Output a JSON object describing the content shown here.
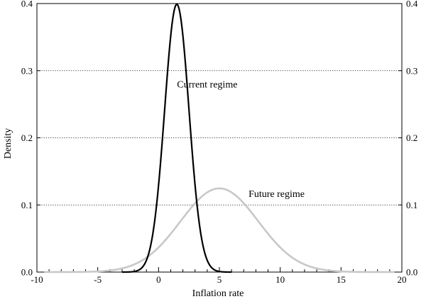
{
  "chart_data": {
    "type": "line",
    "title": "",
    "xlabel": "Inflation rate",
    "ylabel": "Density",
    "xlim": [
      -10,
      20
    ],
    "ylim": [
      0,
      0.4
    ],
    "x_ticks": [
      -10,
      -5,
      0,
      5,
      10,
      15,
      20
    ],
    "x_minor_step": 1,
    "y_ticks": [
      0.0,
      0.1,
      0.2,
      0.3,
      0.4
    ],
    "y_tick_labels": [
      "0.0",
      "0.1",
      "0.2",
      "0.3",
      "0.4"
    ],
    "right_axis_mirror": true,
    "grid": {
      "horizontal": true,
      "style": "dotted"
    },
    "legend": "none",
    "series": [
      {
        "name": "Current regime",
        "distribution": "normal",
        "mean": 1.5,
        "sd": 1.0,
        "color": "#000000"
      },
      {
        "name": "Future regime",
        "distribution": "normal",
        "mean": 5.0,
        "sd": 3.2,
        "color": "#c8c8c8"
      }
    ],
    "annotations": [
      {
        "text": "Current regime",
        "x": 4.0,
        "y": 0.275
      },
      {
        "text": "Future regime",
        "x": 9.7,
        "y": 0.112
      }
    ]
  }
}
